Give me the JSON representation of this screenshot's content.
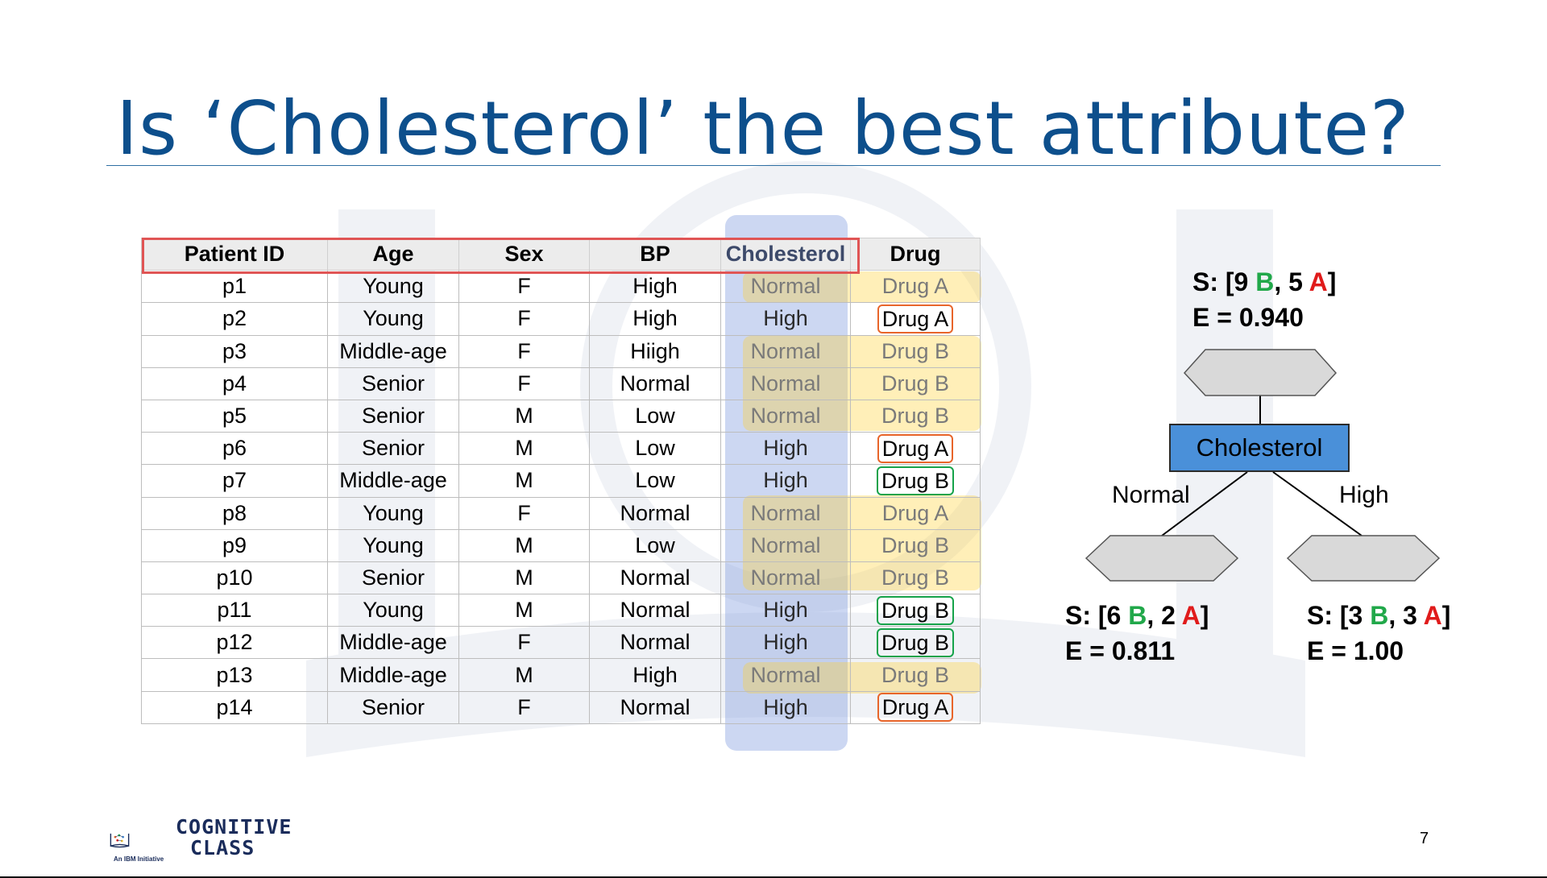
{
  "slide": {
    "title": "Is ‘Cholesterol’ the best attribute?",
    "page_number": "7"
  },
  "table": {
    "headers": [
      "Patient ID",
      "Age",
      "Sex",
      "BP",
      "Cholesterol",
      "Drug"
    ],
    "rows": [
      [
        "p1",
        "Young",
        "F",
        "High",
        "Normal",
        "Drug A"
      ],
      [
        "p2",
        "Young",
        "F",
        "High",
        "High",
        "Drug A"
      ],
      [
        "p3",
        "Middle-age",
        "F",
        "Hiigh",
        "Normal",
        "Drug B"
      ],
      [
        "p4",
        "Senior",
        "F",
        "Normal",
        "Normal",
        "Drug B"
      ],
      [
        "p5",
        "Senior",
        "M",
        "Low",
        "Normal",
        "Drug B"
      ],
      [
        "p6",
        "Senior",
        "M",
        "Low",
        "High",
        "Drug A"
      ],
      [
        "p7",
        "Middle-age",
        "M",
        "Low",
        "High",
        "Drug B"
      ],
      [
        "p8",
        "Young",
        "F",
        "Normal",
        "Normal",
        "Drug A"
      ],
      [
        "p9",
        "Young",
        "M",
        "Low",
        "Normal",
        "Drug B"
      ],
      [
        "p10",
        "Senior",
        "M",
        "Normal",
        "Normal",
        "Drug B"
      ],
      [
        "p11",
        "Young",
        "M",
        "Normal",
        "High",
        "Drug B"
      ],
      [
        "p12",
        "Middle-age",
        "F",
        "Normal",
        "High",
        "Drug B"
      ],
      [
        "p13",
        "Middle-age",
        "M",
        "High",
        "Normal",
        "Drug B"
      ],
      [
        "p14",
        "Senior",
        "F",
        "Normal",
        "High",
        "Drug A"
      ]
    ]
  },
  "tree": {
    "root": {
      "s_prefix": "S: [",
      "b_count": "9",
      "b_letter": "B",
      "sep": ", ",
      "a_count": "5",
      "a_letter": "A",
      "s_suffix": "]",
      "entropy": "E = 0.940"
    },
    "node_label": "Cholesterol",
    "branches": [
      {
        "label": "Normal",
        "s_prefix": "S: [",
        "b_count": "6",
        "b_letter": "B",
        "sep": ", ",
        "a_count": "2",
        "a_letter": "A",
        "s_suffix": "]",
        "entropy": "E = 0.811"
      },
      {
        "label": "High",
        "s_prefix": "S: [",
        "b_count": "3",
        "b_letter": "B",
        "sep": ", ",
        "a_count": "3",
        "a_letter": "A",
        "s_suffix": "]",
        "entropy": "E = 1.00"
      }
    ]
  },
  "logo": {
    "line1": "COGNITIVE",
    "line2": "CLASS",
    "tagline": "An IBM Initiative"
  },
  "colors": {
    "title": "#0d4f8c",
    "drug_b_count": "#21a84a",
    "drug_a_count": "#e01b1b",
    "node_fill": "#4a90d9",
    "drug_a_box": "#e8652a",
    "drug_b_box": "#16a34a"
  }
}
